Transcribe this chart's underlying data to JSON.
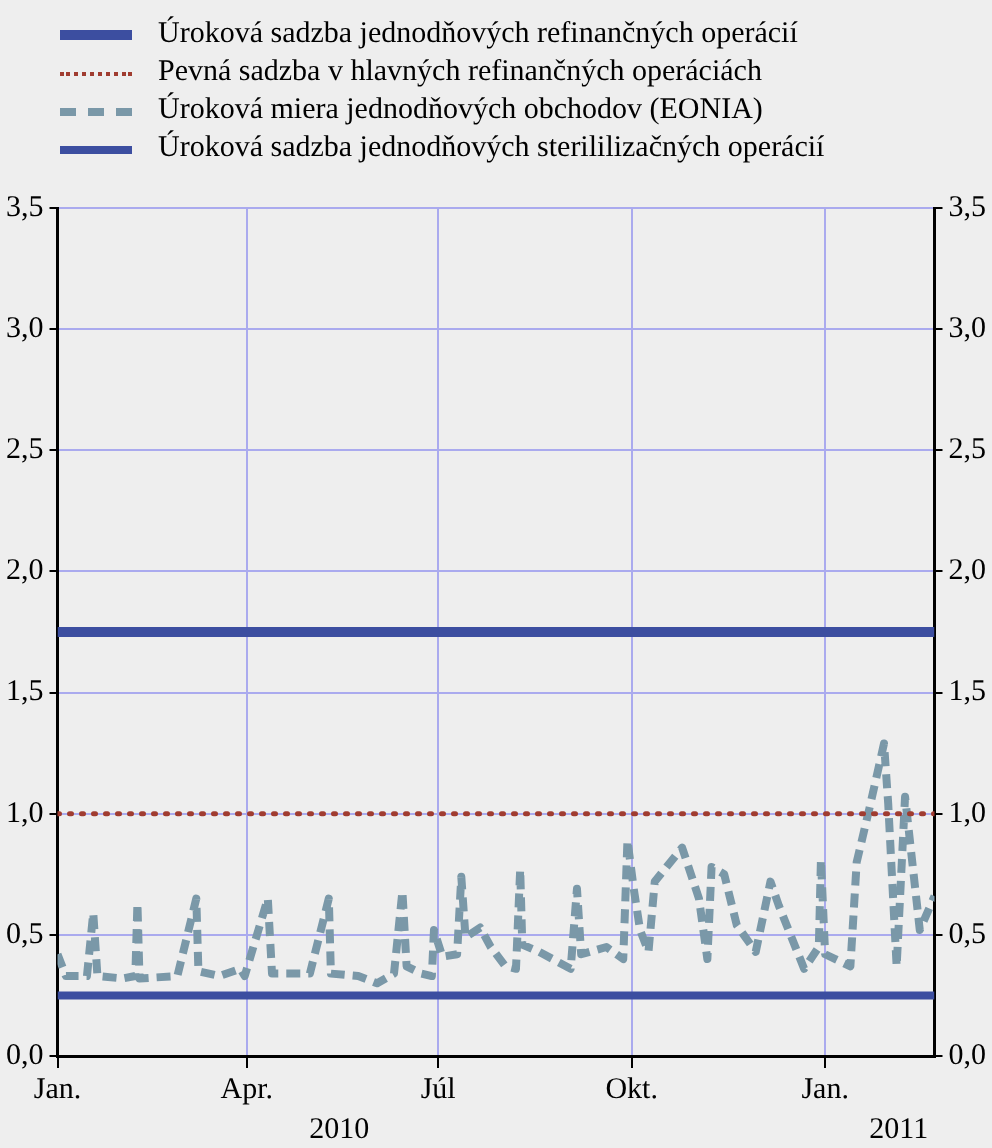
{
  "chart_data": {
    "type": "line",
    "xlim": [
      "2010-01-01",
      "2011-02-22"
    ],
    "xticks": [
      {
        "value": "2010-01-01",
        "label": "Jan."
      },
      {
        "value": "2010-04-01",
        "label": "Apr."
      },
      {
        "value": "2010-07-01",
        "label": "Júl"
      },
      {
        "value": "2010-10-01",
        "label": "Okt."
      },
      {
        "value": "2011-01-01",
        "label": "Jan."
      }
    ],
    "x2lim": [
      "2010-01-01",
      "2011-02-22"
    ],
    "x2ticks": [
      {
        "value": "2010-05-15",
        "label": "2010"
      },
      {
        "value": "2011-02-05",
        "label": "2011"
      }
    ],
    "ylim": [
      0,
      3.5
    ],
    "yticks": [
      {
        "value": 0,
        "label": "0,0"
      },
      {
        "value": 0.5,
        "label": "0,5"
      },
      {
        "value": 1,
        "label": "1,0"
      },
      {
        "value": 1.5,
        "label": "1,5"
      },
      {
        "value": 2,
        "label": "2,0"
      },
      {
        "value": 2.5,
        "label": "2,5"
      },
      {
        "value": 3,
        "label": "3,0"
      },
      {
        "value": 3.5,
        "label": "3,5"
      }
    ],
    "y2lim": [
      0,
      3.5
    ],
    "y2ticks": [
      {
        "value": 0,
        "label": "0,0"
      },
      {
        "value": 0.5,
        "label": "0,5"
      },
      {
        "value": 1,
        "label": "1,0"
      },
      {
        "value": 1.5,
        "label": "1,5"
      },
      {
        "value": 2,
        "label": "2,0"
      },
      {
        "value": 2.5,
        "label": "2,5"
      },
      {
        "value": 3,
        "label": "3,0"
      },
      {
        "value": 3.5,
        "label": "3,5"
      }
    ],
    "grid": true,
    "legend": "top",
    "marker": "none",
    "series": [
      {
        "name": "Úroková sadzba jednodňových refinančných operácií",
        "color": "#3c4ea0",
        "line_style": "solid",
        "x": [
          "2010-01-01",
          "2011-02-22"
        ],
        "values": [
          1.75,
          1.75
        ]
      },
      {
        "name": "Pevná sadzba v hlavných refinančných operáciách",
        "color": "#a03c30",
        "line_style": "dotted",
        "x": [
          "2010-01-01",
          "2011-02-22"
        ],
        "values": [
          1,
          1
        ]
      },
      {
        "name": "Úroková miera jednodňových obchodov (EONIA)",
        "color": "#7a98a8",
        "line_style": "dashed",
        "x": [
          "2010-01-01",
          "2010-01-05",
          "2010-01-15",
          "2010-01-18",
          "2010-01-20",
          "2010-02-01",
          "2010-02-07",
          "2010-02-08",
          "2010-02-09",
          "2010-02-27",
          "2010-03-08",
          "2010-03-09",
          "2010-03-19",
          "2010-03-29",
          "2010-03-31",
          "2010-04-11",
          "2010-04-13",
          "2010-05-01",
          "2010-05-10",
          "2010-05-11",
          "2010-05-24",
          "2010-06-02",
          "2010-06-10",
          "2010-06-14",
          "2010-06-16",
          "2010-06-23",
          "2010-06-28",
          "2010-06-29",
          "2010-07-03",
          "2010-07-10",
          "2010-07-12",
          "2010-07-14",
          "2010-07-21",
          "2010-07-26",
          "2010-08-02",
          "2010-08-07",
          "2010-08-09",
          "2010-08-10",
          "2010-08-18",
          "2010-09-02",
          "2010-09-05",
          "2010-09-07",
          "2010-09-19",
          "2010-09-27",
          "2010-09-29",
          "2010-10-02",
          "2010-10-05",
          "2010-10-09",
          "2010-10-12",
          "2010-10-25",
          "2010-11-02",
          "2010-11-06",
          "2010-11-08",
          "2010-11-14",
          "2010-11-20",
          "2010-11-29",
          "2010-12-06",
          "2010-12-10",
          "2010-12-22",
          "2010-12-29",
          "2010-12-30",
          "2011-01-01",
          "2011-01-13",
          "2011-01-16",
          "2011-01-22",
          "2011-01-29",
          "2011-01-31",
          "2011-02-04",
          "2011-02-08",
          "2011-02-15",
          "2011-02-22"
        ],
        "values": [
          0.42,
          0.33,
          0.33,
          0.59,
          0.33,
          0.32,
          0.33,
          0.63,
          0.32,
          0.33,
          0.65,
          0.35,
          0.33,
          0.36,
          0.33,
          0.65,
          0.34,
          0.34,
          0.65,
          0.34,
          0.33,
          0.3,
          0.34,
          0.68,
          0.37,
          0.34,
          0.33,
          0.52,
          0.41,
          0.42,
          0.74,
          0.49,
          0.53,
          0.45,
          0.37,
          0.36,
          0.77,
          0.46,
          0.43,
          0.36,
          0.69,
          0.42,
          0.45,
          0.4,
          0.89,
          0.69,
          0.52,
          0.43,
          0.72,
          0.86,
          0.65,
          0.4,
          0.78,
          0.75,
          0.54,
          0.43,
          0.72,
          0.62,
          0.36,
          0.45,
          0.81,
          0.42,
          0.37,
          0.8,
          1.02,
          1.29,
          1.04,
          0.37,
          1.07,
          0.52,
          0.66
        ]
      },
      {
        "name": "Úroková sadzba jednodňových sterililizačných operácií",
        "color": "#3c4ea0",
        "line_style": "solid",
        "x": [
          "2010-01-01",
          "2011-02-22"
        ],
        "values": [
          0.25,
          0.25
        ]
      }
    ]
  }
}
